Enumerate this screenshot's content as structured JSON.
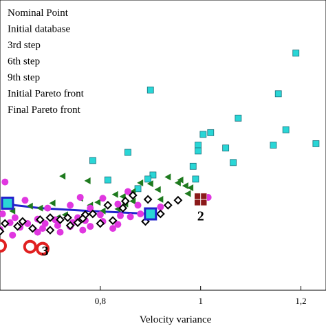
{
  "chart_data": {
    "type": "scatter",
    "xlabel": "Velocity variance",
    "xlim": [
      0.6,
      1.25
    ],
    "ylim": [
      0,
      1
    ],
    "x_ticks": [
      {
        "value": 0.8,
        "label": "0,8"
      },
      {
        "value": 1.0,
        "label": "1"
      },
      {
        "value": 1.2,
        "label": "1,2"
      }
    ],
    "legend_position": "top-left",
    "legend": [
      "Nominal Point",
      "Initial database",
      "3rd step",
      "6th step",
      "9th step",
      "Initial Pareto front",
      "Final Pareto front"
    ],
    "annotations": [
      {
        "text": "2",
        "x": 1.0,
        "y": 0.24
      },
      {
        "text": "3",
        "x": 0.69,
        "y": 0.12
      }
    ],
    "series": [
      {
        "marker": "square",
        "color": "#29d6d6",
        "points": [
          [
            1.19,
            0.817
          ],
          [
            0.9,
            0.69
          ],
          [
            1.155,
            0.677
          ],
          [
            1.075,
            0.593
          ],
          [
            1.17,
            0.553
          ],
          [
            1.005,
            0.537
          ],
          [
            1.02,
            0.543
          ],
          [
            1.23,
            0.505
          ],
          [
            0.995,
            0.5
          ],
          [
            1.145,
            0.5
          ],
          [
            1.05,
            0.49
          ],
          [
            0.995,
            0.48
          ],
          [
            0.855,
            0.475
          ],
          [
            0.785,
            0.447
          ],
          [
            1.065,
            0.44
          ],
          [
            0.985,
            0.427
          ],
          [
            0.905,
            0.397
          ],
          [
            0.99,
            0.383
          ],
          [
            0.815,
            0.38
          ],
          [
            0.895,
            0.383
          ],
          [
            0.875,
            0.35
          ]
        ]
      },
      {
        "marker": "triangle",
        "color": "#1e7a1e",
        "points": [
          [
            0.725,
            0.393
          ],
          [
            0.775,
            0.377
          ],
          [
            0.935,
            0.39
          ],
          [
            0.955,
            0.37
          ],
          [
            0.88,
            0.37
          ],
          [
            0.9,
            0.367
          ],
          [
            0.96,
            0.38
          ],
          [
            0.97,
            0.36
          ],
          [
            0.98,
            0.353
          ],
          [
            0.865,
            0.34
          ],
          [
            0.915,
            0.347
          ],
          [
            0.975,
            0.333
          ],
          [
            0.83,
            0.33
          ],
          [
            0.845,
            0.323
          ],
          [
            0.76,
            0.317
          ],
          [
            0.865,
            0.307
          ],
          [
            0.92,
            0.313
          ],
          [
            0.795,
            0.303
          ],
          [
            0.705,
            0.3
          ],
          [
            0.68,
            0.283
          ],
          [
            0.835,
            0.28
          ],
          [
            0.625,
            0.273
          ],
          [
            0.66,
            0.29
          ],
          [
            0.805,
            0.273
          ],
          [
            0.73,
            0.26
          ],
          [
            0.715,
            0.25
          ],
          [
            0.78,
            0.293
          ],
          [
            0.85,
            0.297
          ]
        ]
      },
      {
        "marker": "circle",
        "color": "#e037e0",
        "points": [
          [
            0.61,
            0.373
          ],
          [
            0.855,
            0.34
          ],
          [
            0.76,
            0.32
          ],
          [
            0.805,
            0.317
          ],
          [
            0.65,
            0.31
          ],
          [
            0.835,
            0.297
          ],
          [
            0.74,
            0.293
          ],
          [
            0.875,
            0.293
          ],
          [
            1.015,
            0.32
          ],
          [
            0.695,
            0.283
          ],
          [
            0.78,
            0.283
          ],
          [
            0.92,
            0.287
          ],
          [
            0.88,
            0.263
          ],
          [
            0.605,
            0.263
          ],
          [
            0.86,
            0.253
          ],
          [
            0.63,
            0.25
          ],
          [
            0.8,
            0.26
          ],
          [
            0.84,
            0.257
          ],
          [
            0.675,
            0.245
          ],
          [
            0.71,
            0.243
          ],
          [
            0.715,
            0.223
          ],
          [
            0.74,
            0.22
          ],
          [
            0.655,
            0.23
          ],
          [
            0.69,
            0.23
          ],
          [
            0.77,
            0.24
          ],
          [
            0.835,
            0.227
          ],
          [
            0.805,
            0.237
          ],
          [
            0.62,
            0.233
          ],
          [
            0.755,
            0.25
          ],
          [
            0.78,
            0.22
          ],
          [
            0.6,
            0.21
          ],
          [
            0.64,
            0.217
          ],
          [
            0.675,
            0.2
          ],
          [
            0.72,
            0.2
          ],
          [
            0.685,
            0.213
          ],
          [
            0.625,
            0.19
          ],
          [
            0.765,
            0.207
          ],
          [
            0.745,
            0.233
          ],
          [
            0.825,
            0.213
          ]
        ]
      },
      {
        "marker": "diamond",
        "color": "#000000",
        "points": [
          [
            0.865,
            0.327
          ],
          [
            0.895,
            0.313
          ],
          [
            0.85,
            0.307
          ],
          [
            0.955,
            0.31
          ],
          [
            0.935,
            0.293
          ],
          [
            0.815,
            0.293
          ],
          [
            0.845,
            0.283
          ],
          [
            0.92,
            0.263
          ],
          [
            0.785,
            0.263
          ],
          [
            0.77,
            0.26
          ],
          [
            0.735,
            0.25
          ],
          [
            0.72,
            0.243
          ],
          [
            0.89,
            0.237
          ],
          [
            0.765,
            0.247
          ],
          [
            0.8,
            0.23
          ],
          [
            0.755,
            0.233
          ],
          [
            0.68,
            0.243
          ],
          [
            0.645,
            0.237
          ],
          [
            0.61,
            0.23
          ],
          [
            0.635,
            0.22
          ],
          [
            0.665,
            0.213
          ],
          [
            0.7,
            0.207
          ],
          [
            0.825,
            0.24
          ],
          [
            0.74,
            0.223
          ],
          [
            0.7,
            0.25
          ],
          [
            0.6,
            0.203
          ]
        ]
      },
      {
        "marker": "nominal-square",
        "color": "#8b1a1a",
        "points": [
          [
            1.0,
            0.313
          ]
        ]
      },
      {
        "marker": "front-square",
        "color": "#2222cc",
        "points": [
          [
            0.615,
            0.3
          ],
          [
            0.9,
            0.263
          ]
        ]
      },
      {
        "marker": "big-circle",
        "color": "#e02020",
        "points": [
          [
            0.6,
            0.153
          ],
          [
            0.66,
            0.15
          ],
          [
            0.685,
            0.143
          ]
        ]
      }
    ],
    "pareto_line": [
      [
        0.615,
        0.3
      ],
      [
        0.63,
        0.293
      ],
      [
        0.68,
        0.283
      ],
      [
        0.78,
        0.273
      ],
      [
        0.9,
        0.263
      ]
    ],
    "pareto_line_color": "#2222cc"
  }
}
